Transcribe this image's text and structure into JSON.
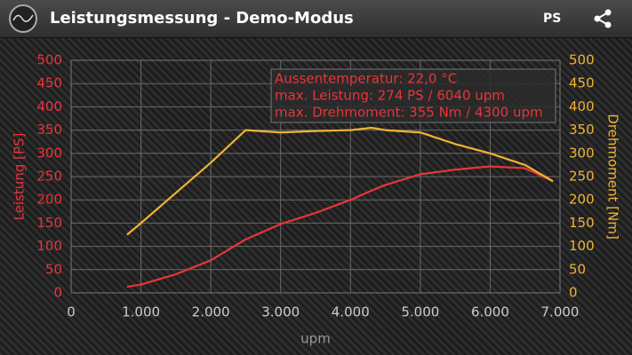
{
  "app_bar": {
    "title": "Leistungsmessung - Demo-Modus",
    "unit_button": "PS"
  },
  "chart_data": {
    "type": "line",
    "x": [
      800,
      1000,
      1500,
      2000,
      2500,
      3000,
      3500,
      4000,
      4300,
      4500,
      5000,
      5500,
      6000,
      6500,
      6900
    ],
    "series": [
      {
        "color": "#e8353a",
        "values": [
          13,
          18,
          40,
          70,
          115,
          148,
          172,
          200,
          220,
          232,
          255,
          265,
          272,
          268,
          240
        ]
      },
      {
        "color": "#f2b233",
        "axis": "y2",
        "values": [
          125,
          150,
          215,
          280,
          350,
          345,
          348,
          350,
          355,
          350,
          345,
          320,
          300,
          275,
          240
        ]
      }
    ],
    "xlim": [
      0,
      7000
    ],
    "xticks": [
      0,
      {
        "value": 1000,
        "label": "1.000"
      },
      {
        "value": 2000,
        "label": "2.000"
      },
      {
        "value": 3000,
        "label": "3.000"
      },
      {
        "value": 4000,
        "label": "4.000"
      },
      {
        "value": 5000,
        "label": "5.000"
      },
      {
        "value": 6000,
        "label": "6.000"
      },
      {
        "value": 7000,
        "label": "7.000"
      }
    ],
    "ylim": [
      0,
      500
    ],
    "yticks": [
      0,
      50,
      100,
      150,
      200,
      250,
      300,
      350,
      400,
      450,
      500
    ],
    "y2lim": [
      0,
      500
    ],
    "y2ticks": [
      0,
      50,
      100,
      150,
      200,
      250,
      300,
      350,
      400,
      450,
      500
    ],
    "x_label": "upm",
    "y_label": "Leistung [PS]",
    "y2_label": "Drehmoment [Nm]",
    "annotations": [
      "Aussentemperatur: 22,0 °C",
      "max. Leistung: 274 PS / 6040 upm",
      "max. Drehmoment: 355 Nm / 4300 upm"
    ],
    "grid": true
  }
}
